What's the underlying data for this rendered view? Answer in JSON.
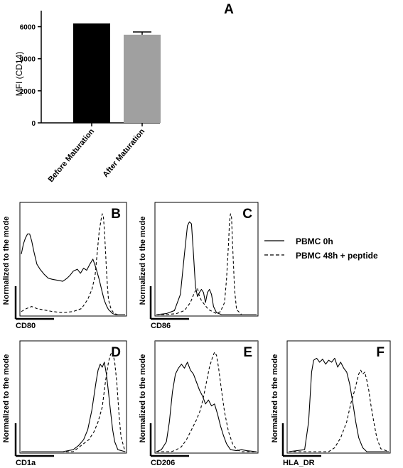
{
  "chart_data": [
    {
      "panel": "A",
      "type": "bar",
      "ylabel": "MFI (CD14)",
      "ylim": [
        0,
        7000
      ],
      "yticks": [
        0,
        2000,
        4000,
        6000
      ],
      "categories": [
        "Before Maturation",
        "After Maturation"
      ],
      "values": [
        6200,
        5500
      ],
      "errors": [
        0,
        170
      ],
      "colors": [
        "#000000",
        "#a0a0a0"
      ]
    },
    {
      "panel": "B",
      "type": "line",
      "xlabel": "CD80",
      "ylabel": "Normalized to the mode",
      "ylim": [
        0,
        100
      ],
      "series": [
        {
          "style": "solid",
          "x": [
            0,
            2,
            4,
            6,
            8,
            10,
            12,
            15,
            18,
            22,
            26,
            30,
            35,
            40,
            44,
            47,
            50,
            54,
            57,
            60,
            63,
            66,
            69,
            72,
            75,
            78,
            80,
            82,
            84,
            86,
            88,
            91,
            94,
            97,
            100
          ],
          "y": [
            60,
            70,
            76,
            80,
            80,
            73,
            63,
            50,
            45,
            40,
            36,
            35,
            34,
            33,
            36,
            39,
            43,
            45,
            41,
            46,
            44,
            50,
            55,
            46,
            35,
            22,
            14,
            9,
            5,
            3,
            1,
            0,
            0,
            0,
            0
          ]
        },
        {
          "style": "dashed",
          "x": [
            0,
            5,
            10,
            15,
            20,
            30,
            40,
            50,
            58,
            64,
            68,
            71,
            73,
            75,
            77,
            78,
            79,
            80,
            81,
            82,
            83,
            84,
            86,
            88,
            90,
            93,
            96,
            100
          ],
          "y": [
            3,
            6,
            8,
            6,
            5,
            3,
            2,
            3,
            6,
            15,
            25,
            38,
            60,
            82,
            95,
            100,
            98,
            85,
            65,
            45,
            28,
            15,
            7,
            3,
            1,
            0,
            0,
            0
          ]
        }
      ]
    },
    {
      "panel": "C",
      "type": "line",
      "xlabel": "CD86",
      "ylabel": "Normalized to the mode",
      "ylim": [
        0,
        100
      ],
      "series": [
        {
          "style": "solid",
          "x": [
            0,
            10,
            18,
            24,
            28,
            31,
            33,
            35,
            37,
            39,
            41,
            43,
            45,
            47,
            49,
            51,
            53,
            55,
            57,
            60,
            65,
            70,
            100
          ],
          "y": [
            0,
            1,
            4,
            20,
            60,
            88,
            92,
            90,
            60,
            28,
            18,
            22,
            25,
            22,
            12,
            22,
            25,
            20,
            8,
            2,
            0,
            0,
            0
          ]
        },
        {
          "style": "dashed",
          "x": [
            0,
            10,
            20,
            28,
            34,
            38,
            41,
            43,
            45,
            48,
            52,
            56,
            60,
            64,
            68,
            70,
            72,
            73,
            74,
            75,
            76,
            78,
            80,
            85,
            100
          ],
          "y": [
            0,
            0,
            1,
            4,
            12,
            22,
            26,
            18,
            14,
            10,
            5,
            3,
            1,
            3,
            12,
            35,
            70,
            92,
            100,
            96,
            70,
            25,
            5,
            0,
            0
          ]
        }
      ]
    },
    {
      "panel": "D",
      "type": "line",
      "xlabel": "CD1a",
      "ylabel": "Normalized to the mode",
      "ylim": [
        0,
        100
      ],
      "series": [
        {
          "style": "solid",
          "x": [
            0,
            40,
            50,
            55,
            60,
            64,
            68,
            72,
            74,
            76,
            78,
            80,
            82,
            84,
            86,
            88,
            90,
            93,
            100
          ],
          "y": [
            0,
            0,
            2,
            6,
            12,
            22,
            42,
            70,
            82,
            88,
            85,
            90,
            78,
            60,
            40,
            22,
            10,
            2,
            0
          ]
        },
        {
          "style": "dashed",
          "x": [
            0,
            50,
            55,
            60,
            65,
            70,
            74,
            78,
            81,
            84,
            86,
            88,
            90,
            92,
            94,
            96,
            100
          ],
          "y": [
            0,
            0,
            4,
            8,
            12,
            20,
            30,
            45,
            70,
            90,
            98,
            100,
            90,
            70,
            40,
            15,
            0
          ]
        }
      ]
    },
    {
      "panel": "E",
      "type": "line",
      "xlabel": "CD206",
      "ylabel": "Normalized to the mode",
      "ylim": [
        0,
        100
      ],
      "series": [
        {
          "style": "solid",
          "x": [
            0,
            5,
            10,
            13,
            16,
            19,
            22,
            25,
            28,
            31,
            34,
            37,
            40,
            43,
            46,
            49,
            52,
            55,
            58,
            61,
            64,
            67,
            70,
            74,
            80,
            85,
            90,
            100
          ],
          "y": [
            0,
            2,
            10,
            30,
            60,
            78,
            84,
            88,
            84,
            90,
            82,
            78,
            70,
            62,
            56,
            48,
            52,
            46,
            48,
            38,
            26,
            16,
            8,
            2,
            1,
            2,
            1,
            0
          ]
        },
        {
          "style": "dashed",
          "x": [
            0,
            15,
            20,
            25,
            30,
            35,
            40,
            44,
            47,
            50,
            53,
            56,
            58,
            60,
            62,
            65,
            68,
            72,
            76,
            80,
            85,
            100
          ],
          "y": [
            0,
            0,
            2,
            5,
            12,
            22,
            32,
            42,
            55,
            70,
            85,
            95,
            100,
            97,
            85,
            62,
            40,
            20,
            8,
            2,
            0,
            0
          ]
        }
      ]
    },
    {
      "panel": "F",
      "type": "line",
      "xlabel": "HLA_DR",
      "ylabel": "Normalized to the mode",
      "ylim": [
        0,
        100
      ],
      "series": [
        {
          "style": "solid",
          "x": [
            0,
            16,
            20,
            23,
            25,
            28,
            31,
            34,
            37,
            40,
            43,
            46,
            49,
            52,
            55,
            58,
            61,
            64,
            67,
            70,
            74,
            78,
            100
          ],
          "y": [
            0,
            2,
            30,
            80,
            92,
            94,
            90,
            93,
            88,
            92,
            90,
            94,
            85,
            90,
            84,
            80,
            68,
            50,
            30,
            14,
            4,
            0,
            0
          ]
        },
        {
          "style": "dashed",
          "x": [
            0,
            40,
            46,
            52,
            58,
            62,
            66,
            70,
            72,
            74,
            76,
            78,
            80,
            82,
            85,
            88,
            92,
            100
          ],
          "y": [
            0,
            0,
            4,
            14,
            30,
            48,
            62,
            78,
            82,
            78,
            80,
            72,
            62,
            48,
            30,
            14,
            3,
            0
          ]
        }
      ]
    }
  ],
  "panel_labels": [
    "A",
    "B",
    "C",
    "D",
    "E",
    "F"
  ],
  "legend": {
    "solid_label": "PBMC 0h",
    "dashed_label": "PBMC 48h + peptide"
  }
}
